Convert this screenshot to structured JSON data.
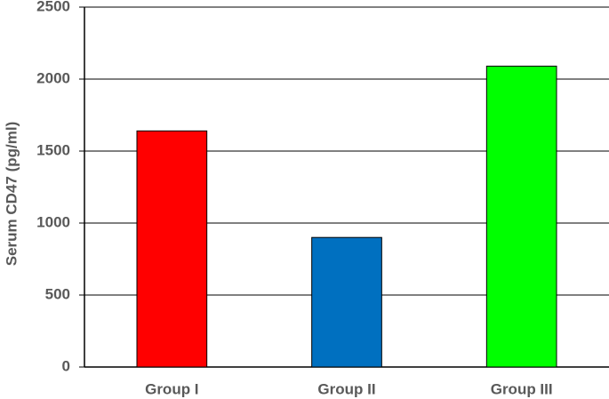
{
  "chart_data": {
    "type": "bar",
    "y_label": "Serum CD47 (pg/ml)",
    "categories": [
      "Group I",
      "Group II",
      "Group III"
    ],
    "values": [
      1640,
      900,
      2090
    ],
    "colors": [
      "#ff0000",
      "#0070c0",
      "#00ff00"
    ],
    "ylim": [
      0,
      2500
    ],
    "yticks": [
      0,
      500,
      1000,
      1500,
      2000,
      2500
    ],
    "grid": true
  }
}
